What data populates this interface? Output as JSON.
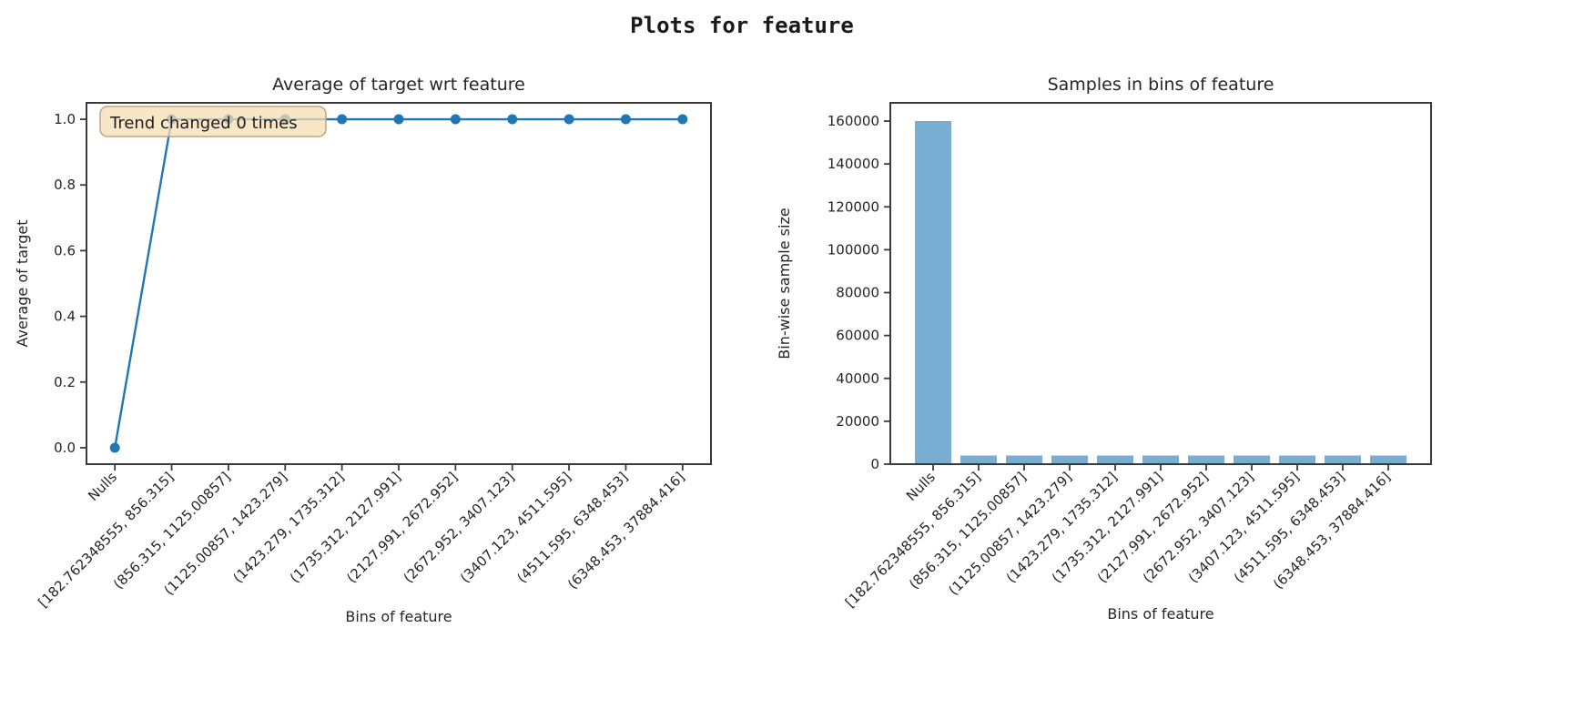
{
  "page": {
    "suptitle": "Plots for feature",
    "background": "#ffffff"
  },
  "colors": {
    "line": "#1f77b4",
    "marker": "#1f77b4",
    "bar_fill": "#79aed2",
    "axis": "#3a3a3a",
    "text": "#262626",
    "annotation_bg": "rgba(245,222,179,0.75)",
    "annotation_border": "rgba(178,158,118,0.9)"
  },
  "chart_data": [
    {
      "type": "line",
      "title": "Average of target wrt feature",
      "xlabel": "Bins of feature",
      "ylabel": "Average of target",
      "categories": [
        "Nulls",
        "[182.762348555, 856.315]",
        "(856.315, 1125.00857]",
        "(1125.00857, 1423.279]",
        "(1423.279, 1735.312]",
        "(1735.312, 2127.991]",
        "(2127.991, 2672.952]",
        "(2672.952, 3407.123]",
        "(3407.123, 4511.595]",
        "(4511.595, 6348.453]",
        "(6348.453, 37884.416]"
      ],
      "values": [
        0.0,
        1.0,
        1.0,
        1.0,
        1.0,
        1.0,
        1.0,
        1.0,
        1.0,
        1.0,
        1.0
      ],
      "yticks": [
        0.0,
        0.2,
        0.4,
        0.6,
        0.8,
        1.0
      ],
      "ytick_labels": [
        "0.0",
        "0.2",
        "0.4",
        "0.6",
        "0.8",
        "1.0"
      ],
      "ylim": [
        -0.05,
        1.05
      ],
      "grid": false,
      "legend": "none",
      "annotation": "Trend changed 0 times"
    },
    {
      "type": "bar",
      "title": "Samples in bins of feature",
      "xlabel": "Bins of feature",
      "ylabel": "Bin-wise sample size",
      "categories": [
        "Nulls",
        "[182.762348555, 856.315]",
        "(856.315, 1125.00857]",
        "(1125.00857, 1423.279]",
        "(1423.279, 1735.312]",
        "(1735.312, 2127.991]",
        "(2127.991, 2672.952]",
        "(2672.952, 3407.123]",
        "(3407.123, 4511.595]",
        "(4511.595, 6348.453]",
        "(6348.453, 37884.416]"
      ],
      "values": [
        160000,
        4000,
        4000,
        4000,
        4000,
        4000,
        4000,
        4000,
        4000,
        4000,
        4000
      ],
      "yticks": [
        0,
        20000,
        40000,
        60000,
        80000,
        100000,
        120000,
        140000,
        160000
      ],
      "ytick_labels": [
        "0",
        "20000",
        "40000",
        "60000",
        "80000",
        "100000",
        "120000",
        "140000",
        "160000"
      ],
      "ylim": [
        0,
        168500
      ],
      "grid": false,
      "legend": "none"
    }
  ]
}
